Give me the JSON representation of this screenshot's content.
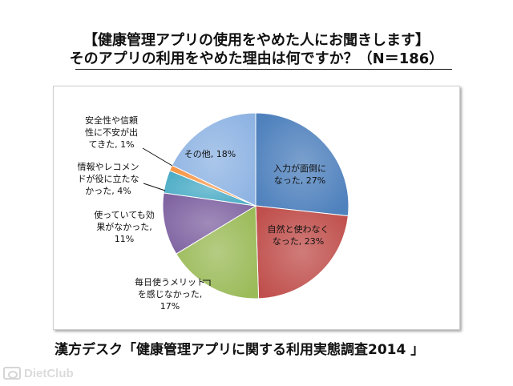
{
  "title_line1": "【健康管理アプリの使用をやめた人にお聞きします】",
  "title_line2": "そのアプリの利用をやめた理由は何ですか？（N＝186）",
  "footer": "漢方デスク「健康管理アプリに関する利用実態調査2014 」",
  "watermark": "DietClub",
  "chart_data": {
    "type": "pie",
    "title": "そのアプリの利用をやめた理由は何ですか？（N＝186）",
    "start_angle_deg": 0,
    "direction": "clockwise",
    "slices": [
      {
        "label_lines": [
          "入力が面倒に",
          "なった, 27%"
        ],
        "value": 27,
        "color": "#4f81bd"
      },
      {
        "label_lines": [
          "自然と使わなく",
          "なった, 23%"
        ],
        "value": 23,
        "color": "#c0504d"
      },
      {
        "label_lines": [
          "毎日使うメリット",
          "を感じなかった,",
          "17%"
        ],
        "value": 17,
        "color": "#9bbb59"
      },
      {
        "label_lines": [
          "使っていても効",
          "果がなかった,",
          "11%"
        ],
        "value": 11,
        "color": "#8064a2"
      },
      {
        "label_lines": [
          "情報やレコメン",
          "ドが役に立たな",
          "かった, 4%"
        ],
        "value": 4,
        "color": "#4bacc6"
      },
      {
        "label_lines": [
          "安全性や信頼",
          "性に不安が出",
          "てきた, 1%"
        ],
        "value": 1,
        "color": "#f79646"
      },
      {
        "label_lines": [
          "その他, 18%"
        ],
        "value": 18,
        "color": "#8fb4e3"
      }
    ]
  }
}
